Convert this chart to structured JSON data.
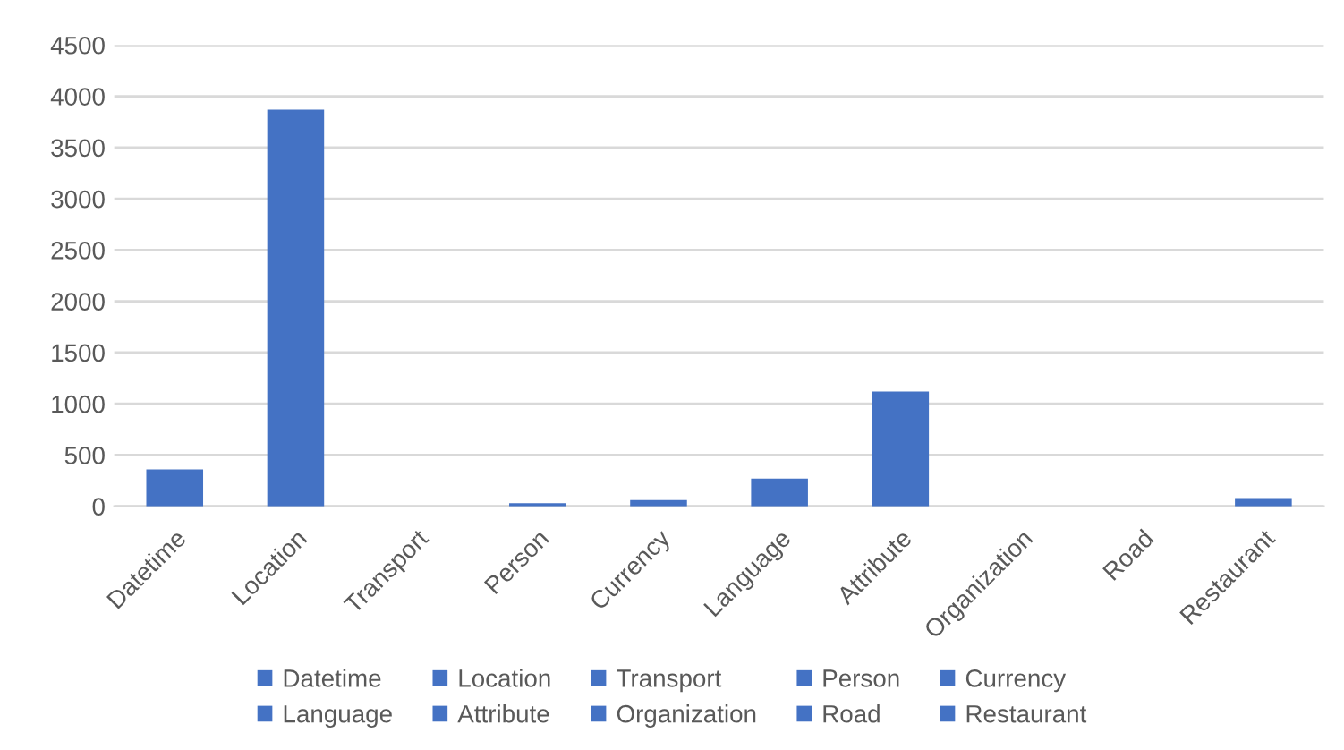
{
  "chart_data": {
    "type": "bar",
    "stacked": true,
    "categories": [
      "Datetime",
      "Location",
      "Transport",
      "Person",
      "Currency",
      "Language",
      "Attribute",
      "Organization",
      "Road",
      "Restaurant"
    ],
    "series": [
      {
        "name": "Datetime",
        "color": "#4472c4",
        "values": [
          360,
          null,
          null,
          null,
          null,
          null,
          null,
          null,
          null,
          null
        ]
      },
      {
        "name": "Location",
        "color": "#4472c4",
        "values": [
          null,
          3870,
          null,
          null,
          null,
          null,
          null,
          null,
          null,
          null
        ]
      },
      {
        "name": "Transport",
        "color": "#4472c4",
        "values": [
          null,
          null,
          0,
          null,
          null,
          null,
          null,
          null,
          null,
          null
        ]
      },
      {
        "name": "Person",
        "color": "#4472c4",
        "values": [
          null,
          null,
          null,
          30,
          null,
          null,
          null,
          null,
          null,
          null
        ]
      },
      {
        "name": "Currency",
        "color": "#4472c4",
        "values": [
          null,
          null,
          null,
          null,
          60,
          null,
          null,
          null,
          null,
          null
        ]
      },
      {
        "name": "Language",
        "color": "#4472c4",
        "values": [
          null,
          null,
          null,
          null,
          null,
          270,
          null,
          null,
          null,
          null
        ]
      },
      {
        "name": "Attribute",
        "color": "#4472c4",
        "values": [
          null,
          null,
          null,
          null,
          null,
          null,
          1120,
          null,
          null,
          null
        ]
      },
      {
        "name": "Organization",
        "color": "#4472c4",
        "values": [
          null,
          null,
          null,
          null,
          null,
          null,
          null,
          0,
          null,
          null
        ]
      },
      {
        "name": "Road",
        "color": "#4472c4",
        "values": [
          null,
          null,
          null,
          null,
          null,
          null,
          null,
          null,
          0,
          null
        ]
      },
      {
        "name": "Restaurant",
        "color": "#4472c4",
        "values": [
          null,
          null,
          null,
          null,
          null,
          null,
          null,
          null,
          null,
          80
        ]
      }
    ],
    "ylim": [
      0,
      4500
    ],
    "yticks": [
      0,
      500,
      1000,
      1500,
      2000,
      2500,
      3000,
      3500,
      4000,
      4500
    ],
    "grid": "y",
    "legend": "bottom"
  }
}
